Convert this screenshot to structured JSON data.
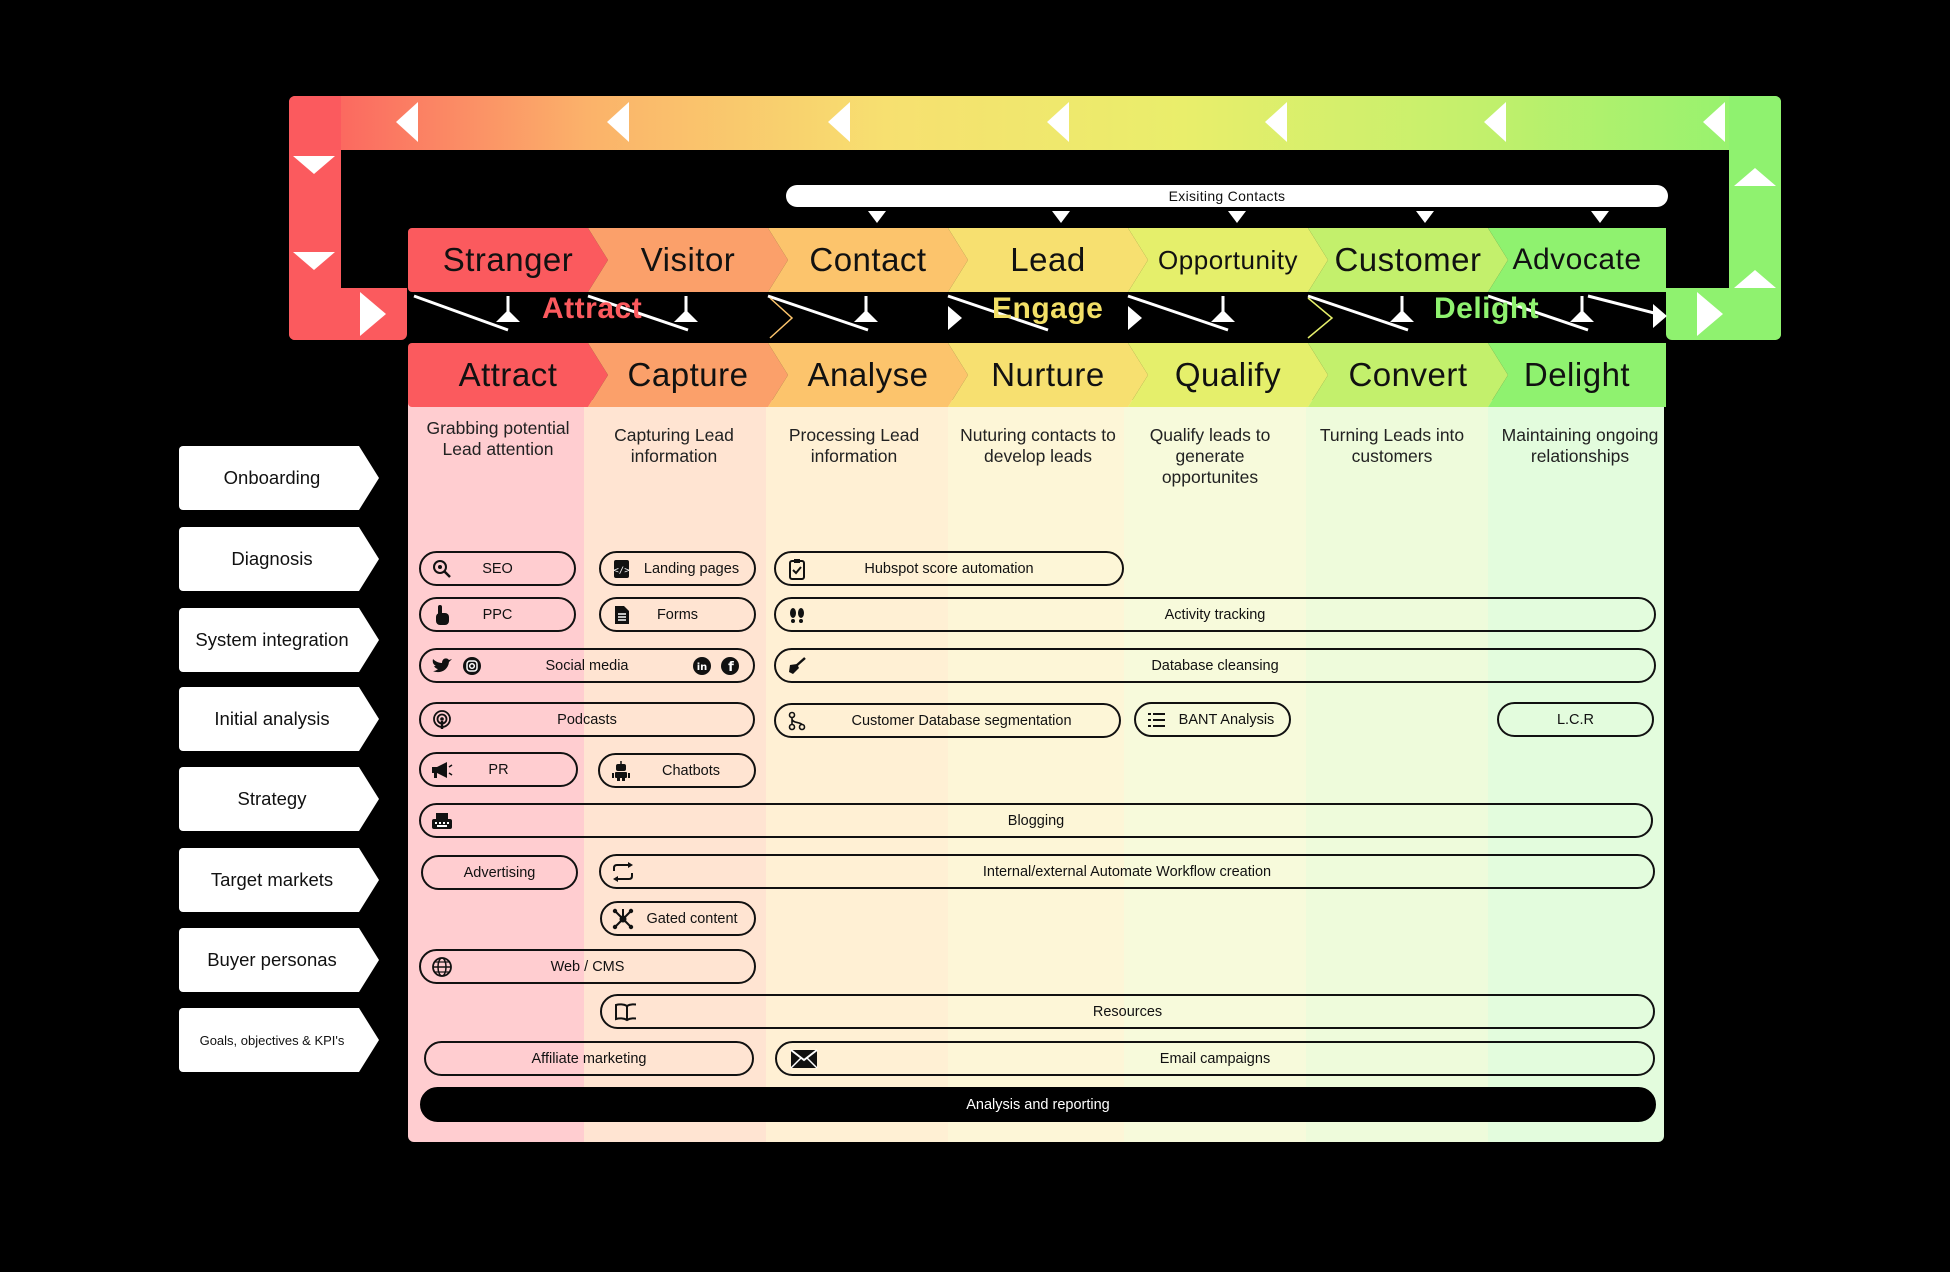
{
  "existing_contacts": "Exisiting Contacts",
  "lifecycle": [
    "Stranger",
    "Visitor",
    "Contact",
    "Lead",
    "Opportunity",
    "Customer",
    "Advocate"
  ],
  "stage_words": {
    "attract": "Attract",
    "engage": "Engage",
    "delight": "Delight"
  },
  "steps": [
    "Attract",
    "Capture",
    "Analyse",
    "Nurture",
    "Qualify",
    "Convert",
    "Delight"
  ],
  "descriptions": [
    "Grabbing potential Lead attention",
    "Capturing Lead information",
    "Processing Lead information",
    "Nuturing contacts to develop leads",
    "Qualify leads to generate opportunites",
    "Turning Leads into customers",
    "Maintaining ongoing relationships"
  ],
  "side_labels": [
    "Onboarding",
    "Diagnosis",
    "System integration",
    "Initial analysis",
    "Strategy",
    "Target markets",
    "Buyer personas",
    "Goals, objectives & KPI's"
  ],
  "activities": {
    "seo": "SEO",
    "landing_pages": "Landing pages",
    "hubspot": "Hubspot score automation",
    "ppc": "PPC",
    "forms": "Forms",
    "activity_tracking": "Activity tracking",
    "social_media": "Social media",
    "database_cleansing": "Database cleansing",
    "podcasts": "Podcasts",
    "segmentation": "Customer Database segmentation",
    "bant": "BANT Analysis",
    "lcr": "L.C.R",
    "pr": "PR",
    "chatbots": "Chatbots",
    "blogging": "Blogging",
    "advertising": "Advertising",
    "workflow": "Internal/external Automate Workflow creation",
    "gated_content": "Gated content",
    "web_cms": "Web / CMS",
    "resources": "Resources",
    "affiliate": "Affiliate marketing",
    "email": "Email campaigns",
    "analysis_reporting": "Analysis and reporting"
  },
  "colors": {
    "red": "#fb5a5e",
    "orange": "#fbb26a",
    "yellow": "#f7e070",
    "green": "#8ff26f",
    "attract_word": "#fb5a5e",
    "engage_word": "#f2df66",
    "delight_word": "#8ff26f"
  }
}
